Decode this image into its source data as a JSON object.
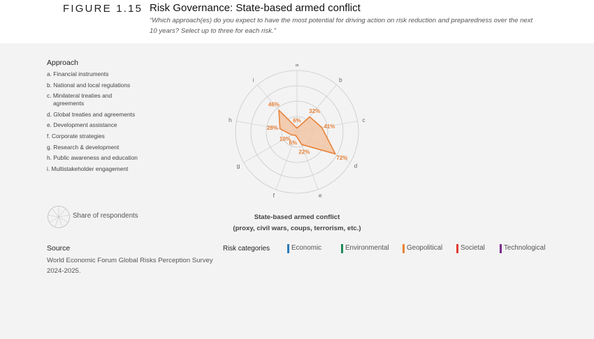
{
  "figure": {
    "label": "FIGURE 1.15",
    "title": "Risk Governance: State-based armed conflict",
    "subtitle": "“Which approach(es) do you expect to have the most potential for driving action on risk reduction and preparedness over the next 10 years? Select up to three for each risk.”"
  },
  "approach": {
    "heading": "Approach",
    "items": [
      "a. Financial instruments",
      "b. National and local regulations",
      "c. Minilateral treaties and agreements",
      "d. Global treaties and agreements",
      "e. Development assistance",
      "f.  Corporate strategies",
      "g. Research & development",
      "h. Public awareness and education",
      "i.  Multistakeholder engagement"
    ]
  },
  "share_label": "Share of respondents",
  "chart_caption": {
    "line1": "State-based armed conflict",
    "line2": "(proxy, civil wars, coups, terrorism, etc.)"
  },
  "source": {
    "heading": "Source",
    "text": "World Economic Forum Global Risks Perception Survey 2024-2025."
  },
  "risk_categories": {
    "label": "Risk categories",
    "items": [
      {
        "name": "Economic",
        "color": "#2a7ab8"
      },
      {
        "name": "Environmental",
        "color": "#1e8a5a"
      },
      {
        "name": "Geopolitical",
        "color": "#e8823a"
      },
      {
        "name": "Societal",
        "color": "#e03c31"
      },
      {
        "name": "Technological",
        "color": "#7b2d8b"
      }
    ]
  },
  "chart_data": {
    "type": "radar",
    "axes": [
      "a",
      "b",
      "c",
      "d",
      "e",
      "f",
      "g",
      "h",
      "i"
    ],
    "values": [
      6,
      32,
      41,
      72,
      22,
      6,
      10,
      28,
      46
    ],
    "value_labels": [
      "6%",
      "32%",
      "41%",
      "72%",
      "22%",
      "6%",
      "10%",
      "28%",
      "46%"
    ],
    "range": [
      0,
      100
    ],
    "rings": 4,
    "color": "#e8823a",
    "fill": "#f2c6a4"
  }
}
